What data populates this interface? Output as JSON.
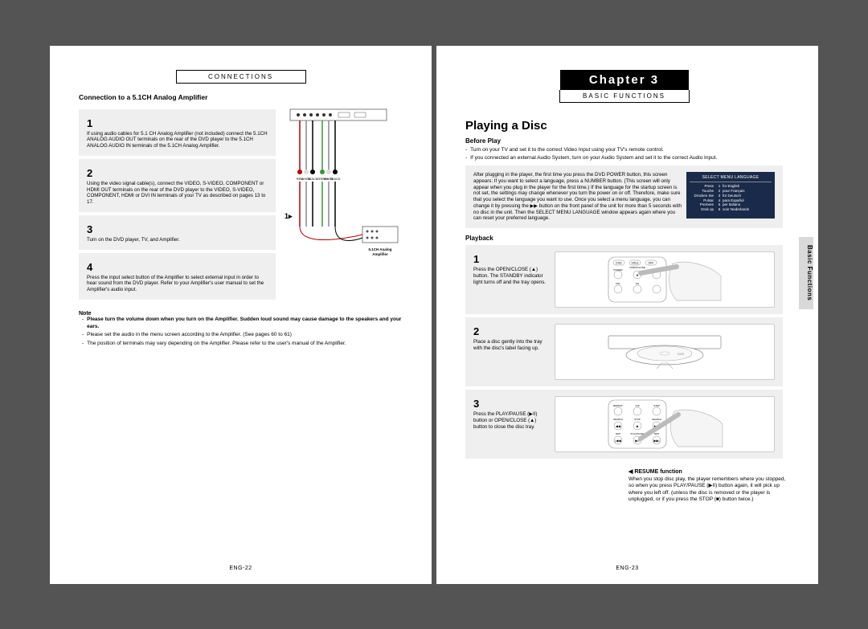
{
  "left": {
    "header": "CONNECTIONS",
    "section_title": "Connection to a 5.1CH Analog Amplifier",
    "steps": [
      {
        "num": "1",
        "text": "If using audio cables for 5.1 CH Analog Amplifier (not included) connect the 5.1CH ANALOG AUDIO OUT terminals on the rear of the DVD player to the 5.1CH ANALOG AUDIO IN terminals of the 5.1CH Analog Amplifier."
      },
      {
        "num": "2",
        "text": "Using the video signal cable(s), connect the VIDEO, S-VIDEO, COMPONENT or HDMI OUT terminals on the rear of the DVD player to the VIDEO, S-VIDEO, COMPONENT, HDMI or DVI IN terminals of your TV as described on pages 13 to 17."
      },
      {
        "num": "3",
        "text": "Turn on the DVD player, TV, and Amplifier."
      },
      {
        "num": "4",
        "text": "Press the input select button of the Amplifier to select external input in order to hear sound from the DVD player. Refer to your Amplifier's user manual to set the Amplifier's audio input."
      }
    ],
    "diagram_caption": "5.1CH Analog Amplifier",
    "cable_labels": [
      "RED",
      "WHITE",
      "BLACK",
      "GREEN",
      "WHITE",
      "BLACK"
    ],
    "note_label": "Note",
    "notes": [
      "Please turn the volume down when you turn on the Amplifier. Sudden loud sound may cause damage to the speakers and your ears.",
      "Please set the audio in the menu screen according to the Amplifier. (See pages 60 to 61)",
      "The position of terminals may vary depending on the Amplifier. Please refer to the user's manual of the Amplifier."
    ],
    "footer": "ENG-22"
  },
  "right": {
    "chapter": "Chapter 3",
    "header": "BASIC FUNCTIONS",
    "title": "Playing a Disc",
    "before_label": "Before Play",
    "before_bullets": [
      "Turn on your TV and set it to the correct Video Input using your TV's remote control.",
      "If you connected an external Audio System, turn on your Audio System and set it to the correct Audio Input."
    ],
    "grey_setup": "After plugging in the player, the first time you press the DVD POWER button, this screen appears: If you want to select a language, press a NUMBER button. (This screen will only appear when you plug in the player for the first time.) If the language for the startup screen is not set, the settings may change whenever you turn the power on or off. Therefore, make sure that you select the language you want to use. Once you select a menu language, you can change it by pressing the ▶▶ button on the front panel of the unit for more than 5 seconds with no disc in the unit. Then the SELECT MENU LANGUAGE window appears again where you can reset your preferred language.",
    "lang_menu": {
      "title": "SELECT MENU LANGUAGE",
      "rows": [
        [
          "Press",
          "1",
          "for English"
        ],
        [
          "Touche",
          "2",
          "pour Français"
        ],
        [
          "Drücken Sie",
          "3",
          "für Deutsch"
        ],
        [
          "Pulsar",
          "4",
          "para Español"
        ],
        [
          "Premere",
          "5",
          "per Italiano"
        ],
        [
          "Druk op",
          "6",
          "voor Nederlands"
        ]
      ]
    },
    "playback_label": "Playback",
    "pb_steps": [
      {
        "num": "1",
        "text": "Press the OPEN/CLOSE (▲) button. The STANDBY indicator light turns off and the tray opens."
      },
      {
        "num": "2",
        "text": "Place a disc gently into the tray with the disc's label facing up."
      },
      {
        "num": "3",
        "text": "Press the PLAY/PAUSE (▶II) button or OPEN/CLOSE (▲) button to close the disc tray."
      }
    ],
    "resume_title": "◀ RESUME function",
    "resume_text": "When you stop disc play, the player remembers where you stopped, so when you press PLAY/PAUSE (▶II) button again, it will pick up where you left off. (unless the disc is removed or the player is unplugged, or if you press the STOP (■) button twice.)",
    "side_tab": "Basic Functions",
    "footer": "ENG-23"
  },
  "colors": {
    "bg": "#545454",
    "page": "#ffffff",
    "grey": "#efefef",
    "black": "#000000",
    "tab": "#d9d9d9",
    "lang_bg": "#1a2a4a"
  }
}
